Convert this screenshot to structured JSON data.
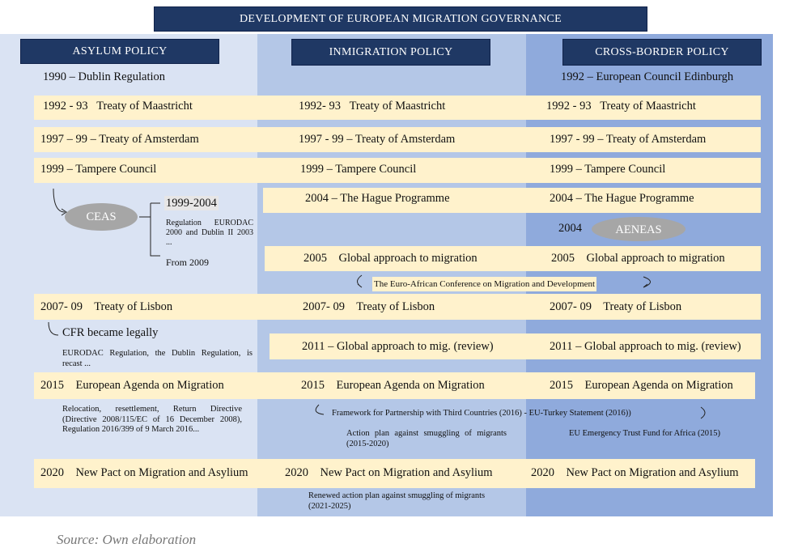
{
  "title": "DEVELOPMENT OF EUROPEAN MIGRATION GOVERNANCE",
  "headers": [
    "ASYLUM POLICY",
    "INMIGRATION POLICY",
    "CROSS-BORDER POLICY"
  ],
  "milestones": [
    {
      "asylum": "1990 – Dublin Regulation",
      "cross_border": "1992 – European Council Edinburgh"
    },
    {
      "asylum": "1992 - 93   Treaty of Maastricht",
      "immigration": "1992- 93   Treaty of Maastricht",
      "cross_border": "1992 - 93   Treaty of Maastricht"
    },
    {
      "asylum": "1997 – 99 – Treaty of Amsterdam",
      "immigration": "1997 - 99 – Treaty of Amsterdam",
      "cross_border": "1997 - 99 – Treaty of Amsterdam"
    },
    {
      "asylum": "1999 – Tampere Council",
      "immigration": "1999 – Tampere Council",
      "cross_border": "1999 – Tampere Council"
    },
    {
      "immigration": "2004 – The Hague Programme",
      "cross_border": "2004 – The Hague Programme"
    },
    {
      "immigration": "2005    Global approach to migration",
      "cross_border": "2005    Global approach to migration"
    },
    {
      "asylum": "2007- 09    Treaty of Lisbon",
      "immigration": "2007- 09    Treaty of Lisbon",
      "cross_border": "2007- 09    Treaty of Lisbon"
    },
    {
      "immigration": "2011 – Global approach to mig. (review)",
      "cross_border": "2011 – Global approach to mig. (review)"
    },
    {
      "asylum": "2015    European Agenda on Migration",
      "immigration": "2015    European Agenda on Migration",
      "cross_border": "2015    European Agenda on Migration"
    },
    {
      "asylum": "2020    New Pact on Migration and Asylium",
      "immigration": "2020    New Pact on Migration and Asylium",
      "cross_border": "2020    New Pact on Migration and Asylium"
    }
  ],
  "ceas": {
    "label": "CEAS",
    "period": "1999-2004",
    "note": "Regulation EURODAC 2000 and Dublin II 2003 ...",
    "from": "From 2009"
  },
  "aeneas": {
    "year": "2004",
    "label": "AENEAS"
  },
  "notes": {
    "euro_african": "The Euro-African Conference on Migration and Development",
    "cfr": "CFR became legally",
    "recast": "EURODAC Regulation, the Dublin Regulation, is recast ...",
    "relocation": "Relocation, resettlement, Return Directive (Directive 2008/115/EC of 16 December 2008), Regulation 2016/399 of 9 March 2016...",
    "framework": "Framework for Partnership with Third Countries (2016) - EU-Turkey Statement (2016))",
    "action_plan": "Action plan against smuggling of migrants (2015-2020)",
    "trust_fund": "EU Emergency Trust Fund for Africa (2015)",
    "renewed": "Renewed action plan against smuggling of migrants (2021-2025)"
  },
  "source": "Source: Own elaboration"
}
